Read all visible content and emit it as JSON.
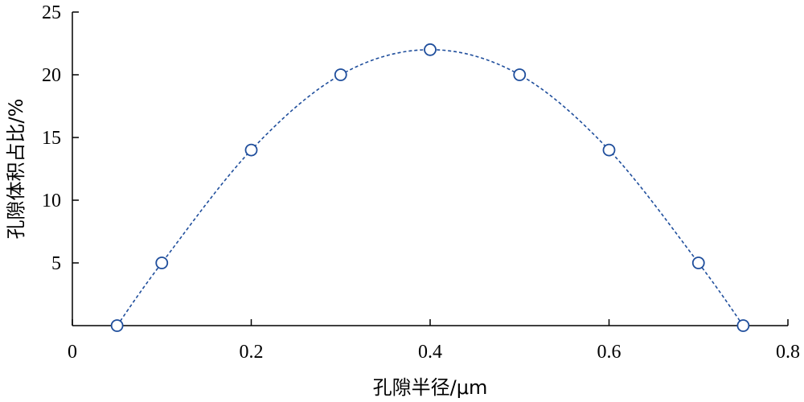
{
  "chart_data": {
    "type": "line",
    "xlabel": "孔隙半径/μm",
    "ylabel": "孔隙体积占比/%",
    "xlim": [
      0,
      0.8
    ],
    "ylim": [
      0,
      25
    ],
    "x_ticks": [
      "0",
      "0.2",
      "0.4",
      "0.6",
      "0.8"
    ],
    "y_ticks": [
      "5",
      "10",
      "15",
      "20",
      "25"
    ],
    "series": [
      {
        "x": [
          0.05,
          0.1,
          0.2,
          0.3,
          0.4,
          0.5,
          0.6,
          0.7,
          0.75
        ],
        "values": [
          0,
          5,
          14,
          20,
          22,
          20,
          14,
          5,
          0
        ],
        "color": "#1f4e9c",
        "line_style": "dashed",
        "marker": "open-circle"
      }
    ],
    "grid": false,
    "legend": "none"
  }
}
